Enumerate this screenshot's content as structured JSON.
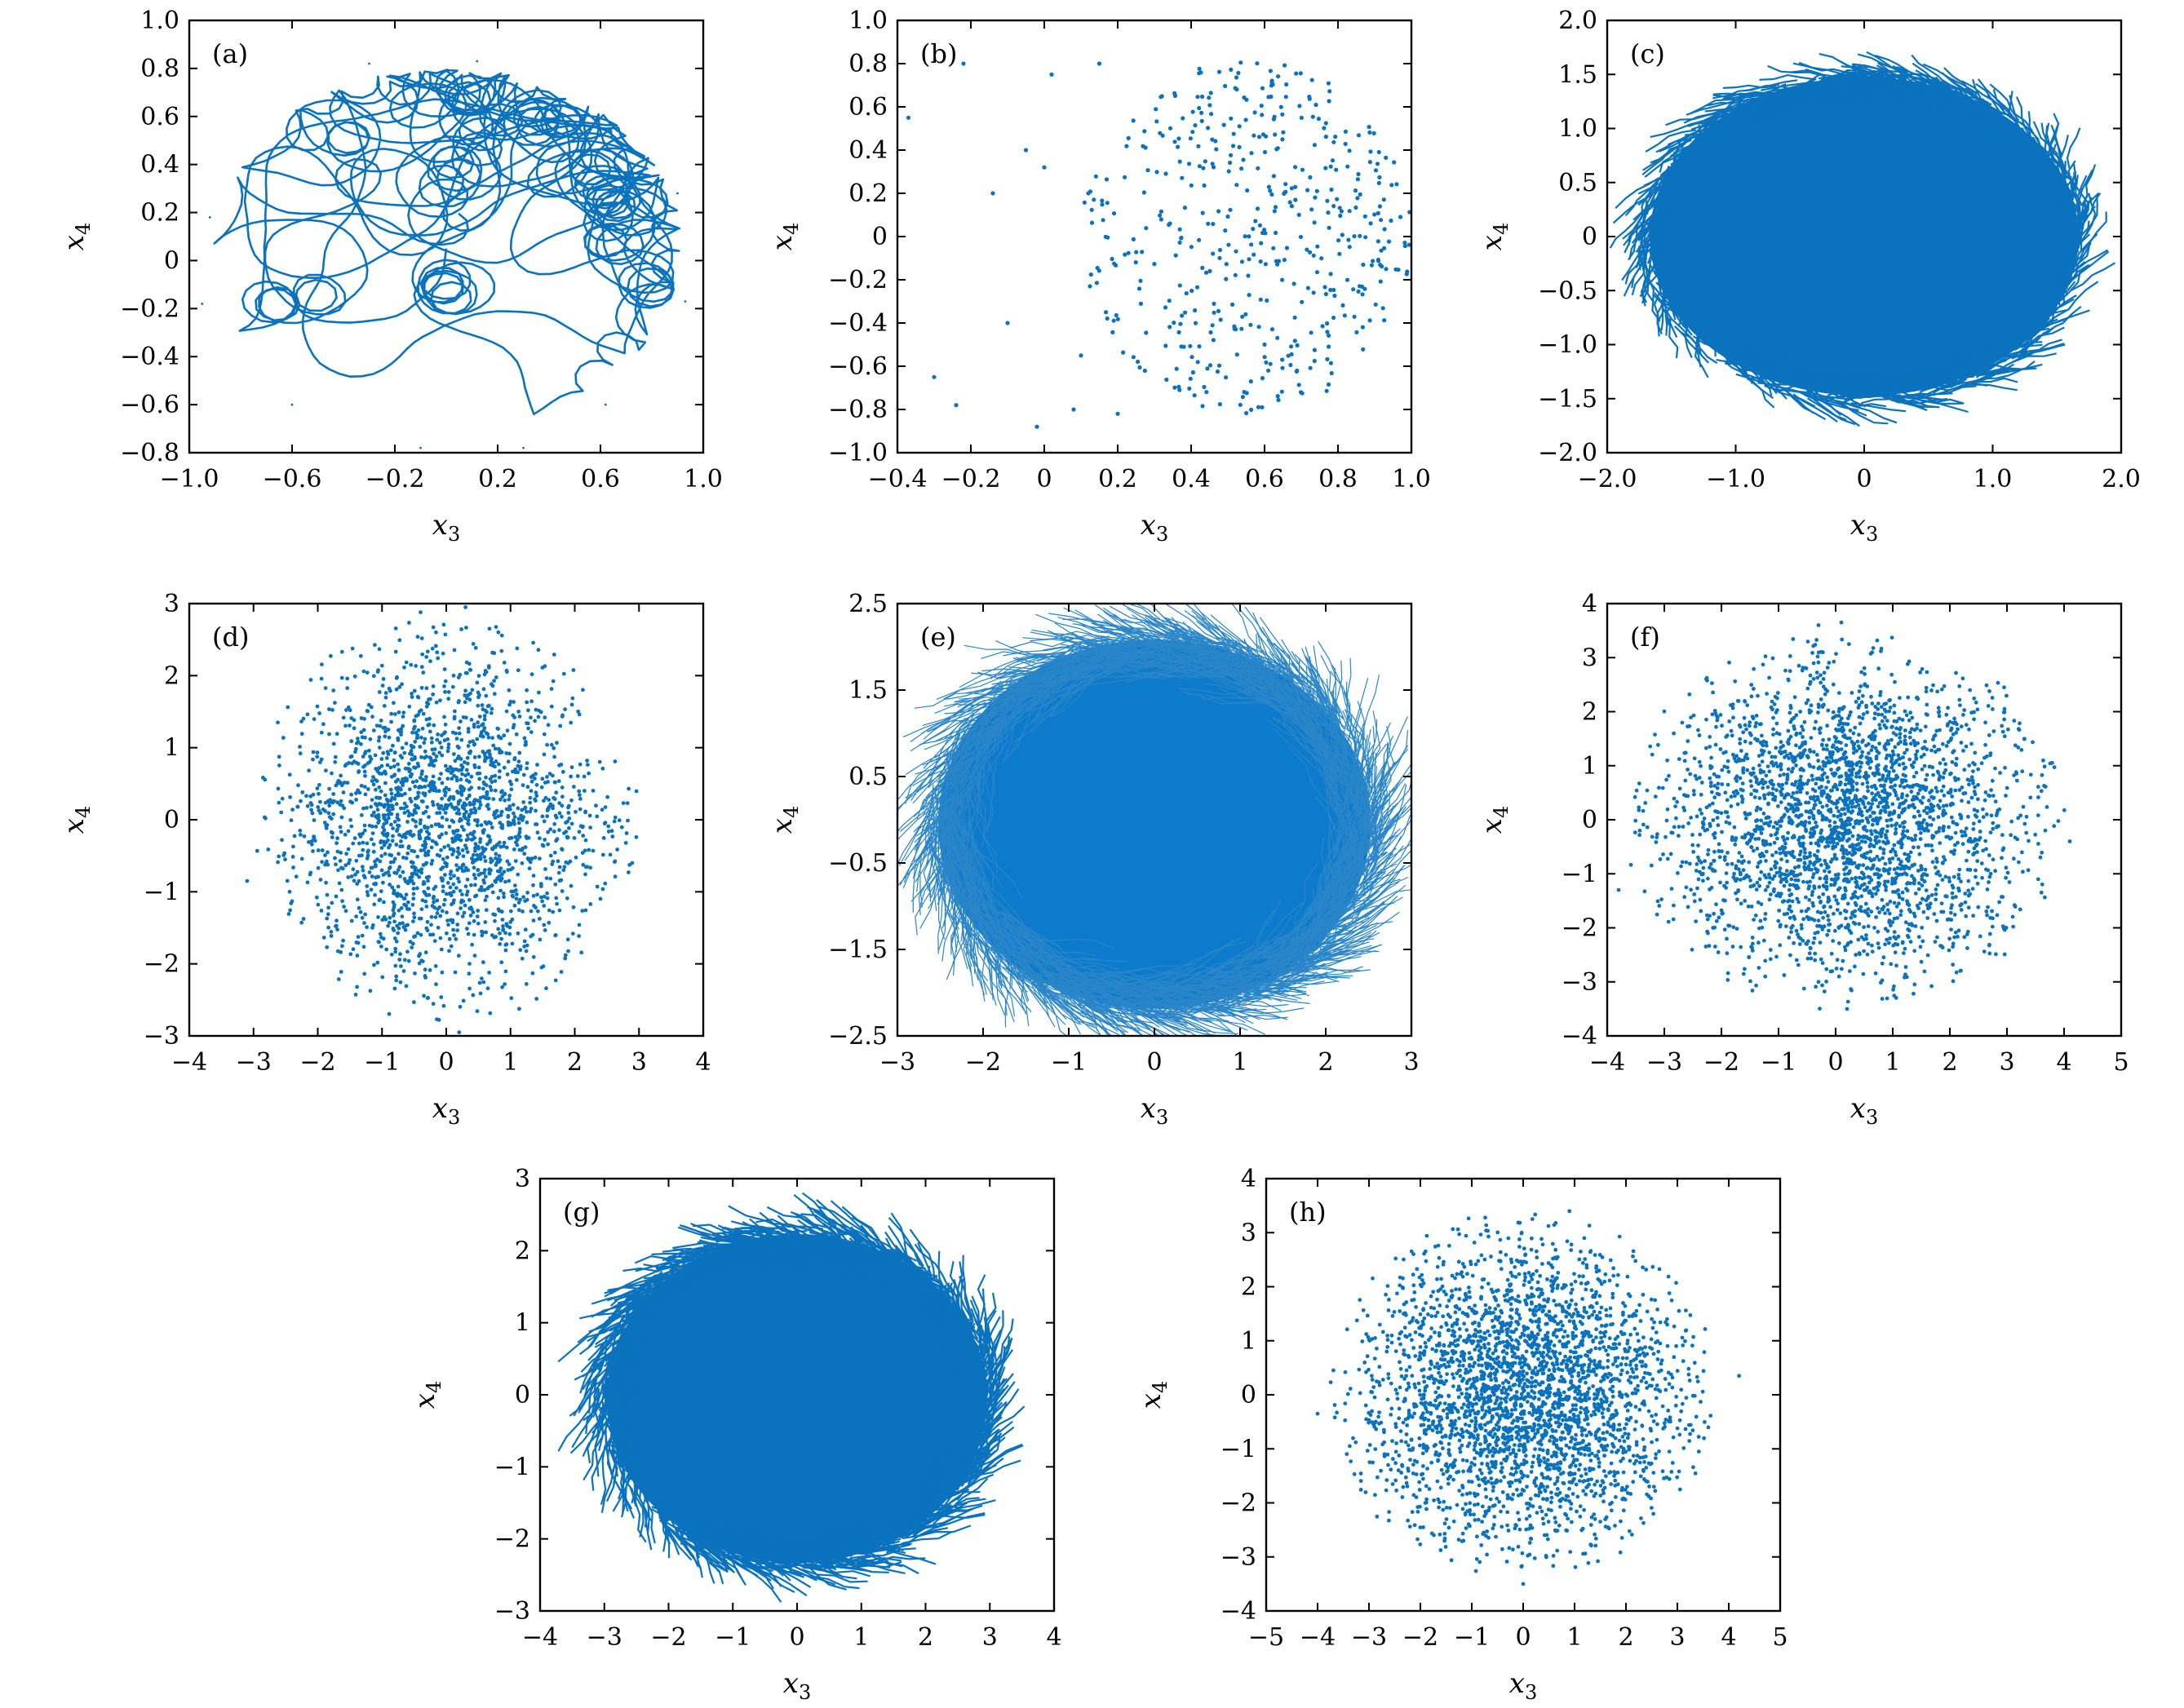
{
  "figure": {
    "series_color": "#0b72bd",
    "background": "#ffffff"
  },
  "chart_data": [
    {
      "panel": "(a)",
      "type": "line",
      "style": "curve",
      "xlabel": "x_3",
      "ylabel": "x_4",
      "xlim": [
        -1.0,
        1.0
      ],
      "ylim": [
        -0.8,
        1.0
      ],
      "xticks": [
        -1.0,
        -0.6,
        -0.2,
        0.2,
        0.6,
        1.0
      ],
      "xtick_labels": [
        "−1.0",
        "−0.6",
        "−0.2",
        "0.2",
        "0.6",
        "1.0"
      ],
      "yticks": [
        -0.8,
        -0.6,
        -0.4,
        -0.2,
        0,
        0.2,
        0.4,
        0.6,
        0.8,
        1.0
      ],
      "ytick_labels": [
        "−0.8",
        "−0.6",
        "−0.4",
        "−0.2",
        "0",
        "0.2",
        "0.4",
        "0.6",
        "0.8",
        "1.0"
      ],
      "cloud": {
        "cx": 0.0,
        "cy": 0.05,
        "rx": 0.92,
        "ry": 0.75,
        "count": 160,
        "seed": 11
      },
      "points": [
        [
          -0.95,
          -0.18
        ],
        [
          -0.92,
          0.18
        ],
        [
          0.93,
          -0.17
        ],
        [
          0.9,
          0.28
        ],
        [
          -0.3,
          0.82
        ],
        [
          0.12,
          0.83
        ],
        [
          -0.1,
          -0.78
        ],
        [
          0.3,
          -0.78
        ],
        [
          0.62,
          -0.6
        ],
        [
          -0.6,
          -0.6
        ]
      ]
    },
    {
      "panel": "(b)",
      "type": "scatter",
      "style": "dots",
      "xlabel": "x_3",
      "ylabel": "x_4",
      "xlim": [
        -0.4,
        1.0
      ],
      "ylim": [
        -1.0,
        1.0
      ],
      "xticks": [
        -0.4,
        -0.2,
        0,
        0.2,
        0.4,
        0.6,
        0.8,
        1.0
      ],
      "xtick_labels": [
        "−0.4",
        "−0.2",
        "0",
        "0.2",
        "0.4",
        "0.6",
        "0.8",
        "1.0"
      ],
      "yticks": [
        -1.0,
        -0.8,
        -0.6,
        -0.4,
        -0.2,
        0,
        0.2,
        0.4,
        0.6,
        0.8,
        1.0
      ],
      "ytick_labels": [
        "−1.0",
        "−0.8",
        "−0.6",
        "−0.4",
        "−0.2",
        "0",
        "0.2",
        "0.4",
        "0.6",
        "0.8",
        "1.0"
      ],
      "cloud": {
        "cx": 0.55,
        "cy": 0.0,
        "rx": 0.45,
        "ry": 0.82,
        "count": 520,
        "seed": 23
      },
      "points": [
        [
          -0.37,
          0.55
        ],
        [
          -0.22,
          0.8
        ],
        [
          -0.3,
          -0.65
        ],
        [
          -0.24,
          -0.78
        ],
        [
          -0.14,
          0.2
        ],
        [
          -0.1,
          -0.4
        ],
        [
          -0.02,
          -0.88
        ],
        [
          0.02,
          0.75
        ],
        [
          0.08,
          -0.8
        ],
        [
          -0.05,
          0.4
        ],
        [
          0.0,
          0.32
        ],
        [
          0.1,
          -0.55
        ],
        [
          0.15,
          0.8
        ],
        [
          0.2,
          -0.82
        ],
        [
          0.12,
          0.2
        ]
      ]
    },
    {
      "panel": "(c)",
      "type": "line",
      "style": "dense",
      "xlabel": "x_3",
      "ylabel": "x_4",
      "xlim": [
        -2.0,
        2.0
      ],
      "ylim": [
        -2.0,
        2.0
      ],
      "xticks": [
        -2.0,
        -1.0,
        0,
        1.0,
        2.0
      ],
      "xtick_labels": [
        "−2.0",
        "−1.0",
        "0",
        "1.0",
        "2.0"
      ],
      "yticks": [
        -2.0,
        -1.5,
        -1.0,
        -0.5,
        0,
        0.5,
        1.0,
        1.5,
        2.0
      ],
      "ytick_labels": [
        "−2.0",
        "−1.5",
        "−1.0",
        "−0.5",
        "0",
        "0.5",
        "1.0",
        "1.5",
        "2.0"
      ],
      "cloud": {
        "cx": 0.0,
        "cy": 0.0,
        "rx": 1.72,
        "ry": 1.52,
        "count": 900,
        "seed": 31,
        "jitter": 0.13
      }
    },
    {
      "panel": "(d)",
      "type": "scatter",
      "style": "dots",
      "xlabel": "x_3",
      "ylabel": "x_4",
      "xlim": [
        -4,
        4
      ],
      "ylim": [
        -3,
        3
      ],
      "xticks": [
        -4,
        -3,
        -2,
        -1,
        0,
        1,
        2,
        3,
        4
      ],
      "xtick_labels": [
        "−4",
        "−3",
        "−2",
        "−1",
        "0",
        "1",
        "2",
        "3",
        "4"
      ],
      "yticks": [
        -3,
        -2,
        -1,
        0,
        1,
        2,
        3
      ],
      "ytick_labels": [
        "−3",
        "−2",
        "−1",
        "0",
        "1",
        "2",
        "3"
      ],
      "cloud": {
        "cx": 0.0,
        "cy": 0.0,
        "rx": 3.0,
        "ry": 2.85,
        "count": 2200,
        "seed": 41
      },
      "points": [
        [
          -3.1,
          -0.85
        ],
        [
          -0.4,
          2.88
        ],
        [
          0.3,
          2.95
        ],
        [
          0.2,
          -2.95
        ]
      ]
    },
    {
      "panel": "(e)",
      "type": "line",
      "style": "dense-thin",
      "xlabel": "x_3",
      "ylabel": "x_4",
      "xlim": [
        -3,
        3
      ],
      "ylim": [
        -2.5,
        2.5
      ],
      "xticks": [
        -3,
        -2,
        -1,
        0,
        1,
        2,
        3
      ],
      "xtick_labels": [
        "−3",
        "−2",
        "−1",
        "0",
        "1",
        "2",
        "3"
      ],
      "yticks": [
        -2.5,
        -1.5,
        -0.5,
        0.5,
        1.5,
        2.5
      ],
      "ytick_labels": [
        "−2.5",
        "−1.5",
        "−0.5",
        "0.5",
        "1.5",
        "2.5"
      ],
      "cloud": {
        "cx": 0.0,
        "cy": -0.05,
        "rx": 2.6,
        "ry": 2.2,
        "count": 1400,
        "seed": 53,
        "jitter": 0.2
      }
    },
    {
      "panel": "(f)",
      "type": "scatter",
      "style": "dots",
      "xlabel": "x_3",
      "ylabel": "x_4",
      "xlim": [
        -4,
        5
      ],
      "ylim": [
        -4,
        4
      ],
      "xticks": [
        -4,
        -3,
        -2,
        -1,
        0,
        1,
        2,
        3,
        4,
        5
      ],
      "xtick_labels": [
        "−4",
        "−3",
        "−2",
        "−1",
        "0",
        "1",
        "2",
        "3",
        "4",
        "5"
      ],
      "yticks": [
        -4,
        -3,
        -2,
        -1,
        0,
        1,
        2,
        3,
        4
      ],
      "ytick_labels": [
        "−4",
        "−3",
        "−2",
        "−1",
        "0",
        "1",
        "2",
        "3",
        "4"
      ],
      "cloud": {
        "cx": 0.2,
        "cy": 0.0,
        "rx": 3.9,
        "ry": 3.55,
        "count": 3000,
        "seed": 67
      },
      "points": [
        [
          -3.8,
          -1.3
        ],
        [
          4.1,
          -0.4
        ],
        [
          -0.3,
          3.6
        ],
        [
          0.1,
          3.65
        ],
        [
          0.2,
          -3.5
        ]
      ]
    },
    {
      "panel": "(g)",
      "type": "line",
      "style": "dense",
      "xlabel": "x_3",
      "ylabel": "x_4",
      "xlim": [
        -4,
        4
      ],
      "ylim": [
        -3,
        3
      ],
      "xticks": [
        -4,
        -3,
        -2,
        -1,
        0,
        1,
        2,
        3,
        4
      ],
      "xtick_labels": [
        "−4",
        "−3",
        "−2",
        "−1",
        "0",
        "1",
        "2",
        "3",
        "4"
      ],
      "yticks": [
        -3,
        -2,
        -1,
        0,
        1,
        2,
        3
      ],
      "ytick_labels": [
        "−3",
        "−2",
        "−1",
        "0",
        "1",
        "2",
        "3"
      ],
      "cloud": {
        "cx": 0.0,
        "cy": -0.05,
        "rx": 3.05,
        "ry": 2.35,
        "count": 1000,
        "seed": 79,
        "jitter": 0.18
      }
    },
    {
      "panel": "(h)",
      "type": "scatter",
      "style": "dots",
      "xlabel": "x_3",
      "ylabel": "x_4",
      "xlim": [
        -5,
        5
      ],
      "ylim": [
        -4,
        4
      ],
      "xticks": [
        -5,
        -4,
        -3,
        -2,
        -1,
        0,
        1,
        2,
        3,
        4,
        5
      ],
      "xtick_labels": [
        "−5",
        "−4",
        "−3",
        "−2",
        "−1",
        "0",
        "1",
        "2",
        "3",
        "4",
        "5"
      ],
      "yticks": [
        -4,
        -3,
        -2,
        -1,
        0,
        1,
        2,
        3,
        4
      ],
      "ytick_labels": [
        "−4",
        "−3",
        "−2",
        "−1",
        "0",
        "1",
        "2",
        "3",
        "4"
      ],
      "cloud": {
        "cx": 0.0,
        "cy": 0.0,
        "rx": 3.8,
        "ry": 3.4,
        "count": 3200,
        "seed": 97
      },
      "points": [
        [
          -4.0,
          -0.35
        ],
        [
          4.2,
          0.35
        ],
        [
          0.9,
          3.4
        ],
        [
          0.0,
          -3.5
        ]
      ]
    }
  ]
}
